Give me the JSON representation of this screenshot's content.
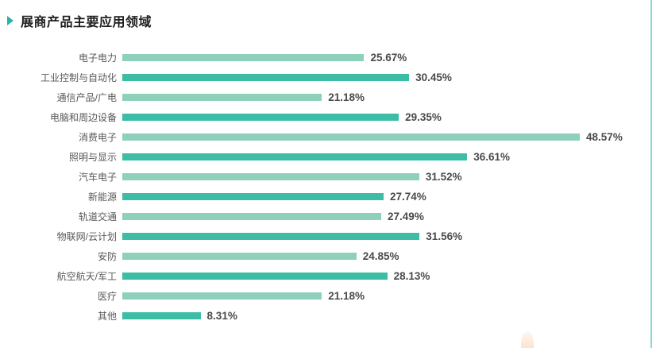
{
  "header": {
    "title": "展商产品主要应用领域"
  },
  "chart_data": {
    "type": "bar",
    "orientation": "horizontal",
    "title": "展商产品主要应用领域",
    "categories": [
      "电子电力",
      "工业控制与自动化",
      "通信产品/广电",
      "电脑和周边设备",
      "消费电子",
      "照明与显示",
      "汽车电子",
      "新能源",
      "轨道交通",
      "物联网/云计划",
      "安防",
      "航空航天/军工",
      "医疗",
      "其他"
    ],
    "values": [
      25.67,
      30.45,
      21.18,
      29.35,
      48.57,
      36.61,
      31.52,
      27.74,
      27.49,
      31.56,
      24.85,
      28.13,
      21.18,
      8.31
    ],
    "value_labels": [
      "25.67%",
      "30.45%",
      "21.18%",
      "29.35%",
      "48.57%",
      "36.61%",
      "31.52%",
      "27.74%",
      "27.49%",
      "31.56%",
      "24.85%",
      "28.13%",
      "21.18%",
      "8.31%"
    ],
    "xlim": [
      0,
      50
    ],
    "grid": false,
    "legend": "none",
    "value_label_position": "right-of-bar",
    "bar_colors": {
      "odd_rows": "#8fd0bc",
      "even_rows": "#3dbda5"
    },
    "accent_color": "#2cb1a9",
    "decor_line_color": "#8adbd6"
  }
}
